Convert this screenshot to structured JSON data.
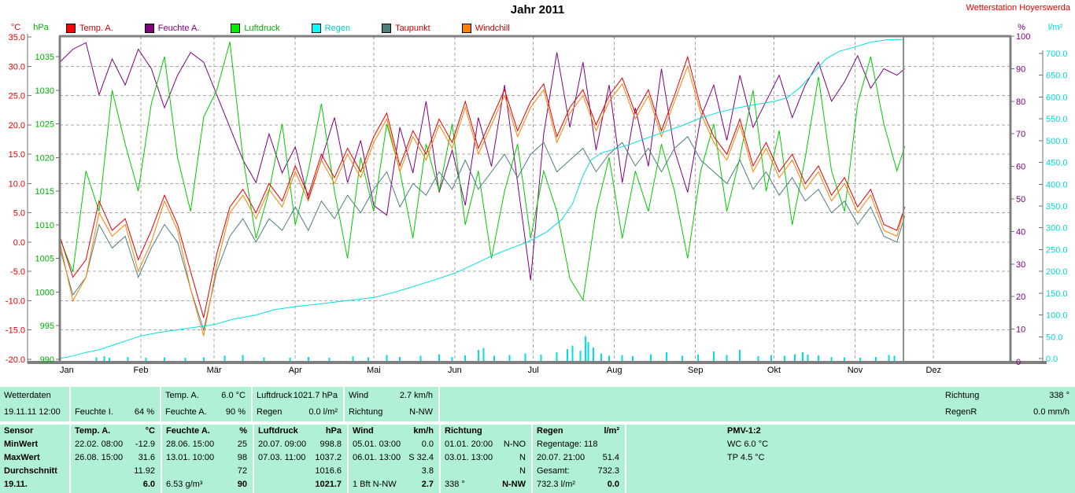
{
  "header": {
    "title": "Jahr 2011",
    "station": "Wetterstation Hoyerswerda"
  },
  "colors": {
    "panel_bg": "#b0f0d4",
    "frame": "#808080",
    "grid": "#a8a8a8",
    "red": "#e60000",
    "green_label": "#00b400",
    "purple": "#800080",
    "cyan_label": "#00d8d8",
    "month_label": "#000000"
  },
  "legend": {
    "items": [
      {
        "label": "Temp. A.",
        "swatch": "#ff0000",
        "text_color": "#d00000"
      },
      {
        "label": "Feuchte A.",
        "swatch": "#800080",
        "text_color": "#800080"
      },
      {
        "label": "Luftdruck",
        "swatch": "#00ee00",
        "text_color": "#00b400"
      },
      {
        "label": "Regen",
        "swatch": "#00ffff",
        "text_color": "#00cccc"
      },
      {
        "label": "Taupunkt",
        "swatch": "#4d7f7f",
        "text_color": "#d00000"
      },
      {
        "label": "Windchill",
        "swatch": "#ff8000",
        "text_color": "#d00000"
      }
    ]
  },
  "chart_data": {
    "type": "line",
    "title": "Jahr 2011",
    "station": "Wetterstation Hoyerswerda",
    "months": [
      "Jan",
      "Feb",
      "Mär",
      "Apr",
      "Mai",
      "Jun",
      "Jul",
      "Aug",
      "Sep",
      "Okt",
      "Nov",
      "Dez"
    ],
    "month_start_days": [
      0,
      31,
      59,
      90,
      120,
      151,
      181,
      212,
      243,
      273,
      304,
      334
    ],
    "data_end_day": 322.5,
    "axes": {
      "temp": {
        "unit": "°C",
        "color": "#e60000",
        "min": -20,
        "max": 35,
        "tick_step": 5,
        "decimals": 1
      },
      "hpa": {
        "unit": "hPa",
        "color": "#00b400",
        "min": 990,
        "max": 1035,
        "tick_step": 5,
        "decimals": 0
      },
      "pct": {
        "unit": "%",
        "color": "#800080",
        "min": 0,
        "max": 100,
        "tick_step": 10,
        "decimals": 0
      },
      "lm2": {
        "unit": "l/m²",
        "color": "#00d8d8",
        "min": 0,
        "max": 700,
        "tick_step": 50,
        "decimals": 1
      }
    },
    "sample_days": [
      0,
      5,
      10,
      15,
      20,
      25,
      30,
      35,
      40,
      45,
      50,
      55,
      60,
      65,
      70,
      75,
      80,
      85,
      90,
      95,
      100,
      105,
      110,
      115,
      120,
      125,
      130,
      135,
      140,
      145,
      150,
      155,
      160,
      165,
      170,
      175,
      180,
      185,
      190,
      195,
      200,
      205,
      210,
      215,
      220,
      225,
      230,
      235,
      240,
      245,
      250,
      255,
      260,
      265,
      270,
      275,
      280,
      285,
      290,
      295,
      300,
      305,
      310,
      315,
      320,
      323
    ],
    "series": [
      {
        "name": "Feuchte A.",
        "axis": "pct",
        "color": "#800080",
        "values": [
          92,
          96,
          98,
          82,
          93,
          85,
          96,
          90,
          78,
          88,
          95,
          92,
          82,
          72,
          62,
          55,
          70,
          58,
          66,
          50,
          62,
          75,
          55,
          68,
          48,
          45,
          72,
          58,
          80,
          52,
          65,
          48,
          75,
          60,
          85,
          55,
          25,
          70,
          95,
          72,
          92,
          65,
          85,
          55,
          78,
          60,
          90,
          65,
          52,
          75,
          85,
          68,
          88,
          72,
          80,
          88,
          75,
          85,
          92,
          80,
          86,
          94,
          84,
          90,
          88,
          90
        ]
      },
      {
        "name": "Luftdruck",
        "axis": "hpa",
        "color": "#00cc00",
        "values": [
          1008,
          1003,
          1018,
          1012,
          1030,
          1022,
          1015,
          1028,
          1035,
          1020,
          1012,
          1026,
          1030,
          1037.2,
          1020,
          1008,
          1015,
          1025,
          1010,
          1018,
          1028,
          1015,
          1005,
          1020,
          1012,
          1025,
          1018,
          1008,
          1022,
          1015,
          1025,
          1010,
          1018,
          1005,
          1015,
          1022,
          1008,
          1018,
          1012,
          1002,
          998.8,
          1012,
          1020,
          1008,
          1018,
          1012,
          1022,
          1015,
          1005,
          1018,
          1025,
          1012,
          1020,
          1030,
          1015,
          1024,
          1010,
          1020,
          1032,
          1018,
          1012,
          1028,
          1035,
          1025,
          1018,
          1021.7
        ]
      },
      {
        "name": "Taupunkt",
        "axis": "temp",
        "color": "#4d7f7f",
        "values": [
          -1,
          -9,
          -6,
          3,
          -1,
          1,
          -6,
          -1,
          3,
          0,
          -8,
          -15,
          -5,
          1,
          4,
          0,
          4,
          2,
          6,
          2,
          7,
          4,
          8,
          5,
          9,
          12,
          6,
          10,
          8,
          12,
          9,
          14,
          9,
          12,
          15,
          11,
          15,
          17,
          12,
          14,
          16,
          12,
          15,
          17,
          13,
          16,
          12,
          16,
          18,
          14,
          12,
          10,
          14,
          9,
          12,
          8,
          11,
          7,
          9,
          5,
          7,
          3,
          6,
          1,
          0,
          4.5
        ]
      },
      {
        "name": "Windchill",
        "axis": "temp",
        "color": "#ff8000",
        "values": [
          0,
          -10,
          -6,
          5,
          1,
          3,
          -5,
          0,
          7,
          2,
          -8,
          -16,
          -4,
          5,
          8,
          4,
          9,
          6,
          12,
          7,
          14,
          10,
          15,
          11,
          17,
          21,
          12,
          18,
          14,
          20,
          16,
          23,
          15,
          20,
          25,
          18,
          23,
          26,
          17,
          22,
          25,
          19,
          24,
          27,
          21,
          25,
          18,
          24,
          30,
          22,
          17,
          14,
          20,
          12,
          16,
          11,
          14,
          9,
          12,
          7,
          10,
          5,
          8,
          2,
          1,
          6
        ]
      },
      {
        "name": "Temp. A.",
        "axis": "temp",
        "color": "#e60000",
        "values": [
          1,
          -6,
          -3,
          7,
          2,
          4,
          -3,
          2,
          8,
          3,
          -5,
          -12.9,
          -2,
          6,
          9,
          5,
          10,
          7,
          13,
          8,
          15,
          11,
          16,
          12,
          18,
          22,
          13,
          19,
          15,
          21,
          17,
          24,
          16,
          21,
          26,
          19,
          24,
          27,
          18,
          23,
          26,
          20,
          25,
          28,
          22,
          26,
          19,
          25,
          31.6,
          23,
          18,
          15,
          21,
          13,
          17,
          12,
          15,
          10,
          13,
          8,
          11,
          6,
          9,
          3,
          2,
          6
        ]
      },
      {
        "name": "Regen",
        "axis": "lm2",
        "color": "#00e0e0",
        "points": [
          [
            0,
            0
          ],
          [
            5,
            6
          ],
          [
            10,
            14
          ],
          [
            15,
            20
          ],
          [
            20,
            30
          ],
          [
            25,
            40
          ],
          [
            31,
            52
          ],
          [
            38,
            60
          ],
          [
            45,
            66
          ],
          [
            52,
            72
          ],
          [
            59,
            78
          ],
          [
            66,
            90
          ],
          [
            75,
            100
          ],
          [
            82,
            112
          ],
          [
            90,
            119
          ],
          [
            100,
            126
          ],
          [
            110,
            133
          ],
          [
            120,
            140
          ],
          [
            128,
            152
          ],
          [
            135,
            165
          ],
          [
            142,
            178
          ],
          [
            151,
            196
          ],
          [
            158,
            215
          ],
          [
            165,
            235
          ],
          [
            172,
            252
          ],
          [
            179,
            268
          ],
          [
            186,
            290
          ],
          [
            192,
            320
          ],
          [
            196,
            355
          ],
          [
            200,
            420
          ],
          [
            203,
            455
          ],
          [
            207,
            472
          ],
          [
            212,
            480
          ],
          [
            218,
            492
          ],
          [
            224,
            505
          ],
          [
            231,
            520
          ],
          [
            238,
            535
          ],
          [
            245,
            552
          ],
          [
            252,
            565
          ],
          [
            259,
            575
          ],
          [
            266,
            583
          ],
          [
            273,
            590
          ],
          [
            278,
            598
          ],
          [
            283,
            622
          ],
          [
            288,
            655
          ],
          [
            293,
            688
          ],
          [
            298,
            705
          ],
          [
            304,
            715
          ],
          [
            310,
            726
          ],
          [
            316,
            731
          ],
          [
            322.5,
            732.3
          ]
        ]
      }
    ],
    "rain_bars": [
      [
        14,
        3
      ],
      [
        17,
        5
      ],
      [
        19,
        2
      ],
      [
        26,
        4
      ],
      [
        33,
        2
      ],
      [
        40,
        3
      ],
      [
        48,
        2
      ],
      [
        55,
        3
      ],
      [
        63,
        6
      ],
      [
        70,
        8
      ],
      [
        78,
        3
      ],
      [
        88,
        2
      ],
      [
        95,
        4
      ],
      [
        103,
        2
      ],
      [
        112,
        5
      ],
      [
        118,
        3
      ],
      [
        125,
        8
      ],
      [
        130,
        4
      ],
      [
        138,
        6
      ],
      [
        145,
        10
      ],
      [
        150,
        4
      ],
      [
        155,
        7
      ],
      [
        160,
        20
      ],
      [
        162,
        24
      ],
      [
        166,
        6
      ],
      [
        172,
        8
      ],
      [
        178,
        12
      ],
      [
        184,
        9
      ],
      [
        190,
        14
      ],
      [
        194,
        22
      ],
      [
        196,
        30
      ],
      [
        199,
        18
      ],
      [
        201,
        51.4
      ],
      [
        202,
        38
      ],
      [
        204,
        25
      ],
      [
        207,
        12
      ],
      [
        210,
        6
      ],
      [
        215,
        8
      ],
      [
        219,
        5
      ],
      [
        226,
        10
      ],
      [
        232,
        14
      ],
      [
        238,
        6
      ],
      [
        244,
        9
      ],
      [
        250,
        16
      ],
      [
        255,
        8
      ],
      [
        260,
        20
      ],
      [
        267,
        5
      ],
      [
        272,
        8
      ],
      [
        277,
        6
      ],
      [
        281,
        10
      ],
      [
        284,
        14
      ],
      [
        286,
        9
      ],
      [
        290,
        7
      ],
      [
        295,
        4
      ],
      [
        300,
        3
      ],
      [
        306,
        2
      ],
      [
        312,
        4
      ],
      [
        317,
        8
      ],
      [
        319,
        6
      ]
    ]
  },
  "info": {
    "title": "Wetterdaten",
    "datetime": "19.11.11 12:00",
    "cells": [
      {
        "rows": [
          {
            "l": "",
            "v": ""
          },
          {
            "l": "Feuchte I.",
            "v": "64 %"
          }
        ]
      },
      {
        "rows": [
          {
            "l": "Temp. A.",
            "v": "6.0 °C"
          },
          {
            "l": "Feuchte A.",
            "v": "90 %"
          }
        ]
      },
      {
        "rows": [
          {
            "l": "Luftdruck",
            "v": "1021.7 hPa"
          },
          {
            "l": "Regen",
            "v": "0.0 l/m²"
          }
        ]
      },
      {
        "rows": [
          {
            "l": "Wind",
            "v": "2.7 km/h"
          },
          {
            "l": "Richtung",
            "v": "N-NW"
          }
        ]
      },
      {
        "rows": [
          {
            "l": "Richtung",
            "v": "338 °"
          },
          {
            "l": "RegenR",
            "v": "0.0 mm/h"
          }
        ],
        "right": true
      }
    ]
  },
  "stats": {
    "row_labels": [
      "Sensor",
      "MinWert",
      "MaxWert",
      "Durchschnitt",
      "19.11."
    ],
    "columns": [
      {
        "header": {
          "l": "Temp. A.",
          "v": "°C"
        },
        "rows": [
          {
            "l": "22.02. 08:00",
            "v": "-12.9"
          },
          {
            "l": "26.08. 15:00",
            "v": "31.6"
          },
          {
            "l": "",
            "v": "11.92"
          },
          {
            "l": "",
            "v": "6.0"
          }
        ]
      },
      {
        "header": {
          "l": "Feuchte A.",
          "v": "%"
        },
        "rows": [
          {
            "l": "28.06. 15:00",
            "v": "25"
          },
          {
            "l": "13.01. 10:00",
            "v": "98"
          },
          {
            "l": "",
            "v": "72"
          },
          {
            "l": "6.53 g/m³",
            "v": "90"
          }
        ]
      },
      {
        "header": {
          "l": "Luftdruck",
          "v": "hPa"
        },
        "rows": [
          {
            "l": "20.07. 09:00",
            "v": "998.8"
          },
          {
            "l": "07.03. 11:00",
            "v": "1037.2"
          },
          {
            "l": "",
            "v": "1016.6"
          },
          {
            "l": "",
            "v": "1021.7"
          }
        ]
      },
      {
        "header": {
          "l": "Wind",
          "v": "km/h"
        },
        "rows": [
          {
            "l": "05.01. 03:00",
            "v": "0.0"
          },
          {
            "l": "06.01. 13:00",
            "v": "S 32.4"
          },
          {
            "l": "",
            "v": "3.8"
          },
          {
            "l": "1 Bft N-NW",
            "v": "2.7"
          }
        ]
      },
      {
        "header": {
          "l": "Richtung",
          "v": ""
        },
        "rows": [
          {
            "l": "01.01. 20:00",
            "v": "N-NO"
          },
          {
            "l": "03.01. 13:00",
            "v": "N"
          },
          {
            "l": "",
            "v": "N"
          },
          {
            "l": "338 °",
            "v": "N-NW"
          }
        ]
      },
      {
        "header": {
          "l": "Regen",
          "v": "l/m²"
        },
        "rows": [
          {
            "l": "Regentage: 118",
            "v": ""
          },
          {
            "l": "20.07. 21:00",
            "v": "51.4"
          },
          {
            "l": "Gesamt:",
            "v": "732.3"
          },
          {
            "l": "732.3 l/m²",
            "v": "0.0"
          }
        ]
      }
    ],
    "pmv": {
      "title": "PMV-1:2",
      "lines": [
        "WC 6.0 °C",
        "TP 4.5 °C"
      ]
    }
  }
}
